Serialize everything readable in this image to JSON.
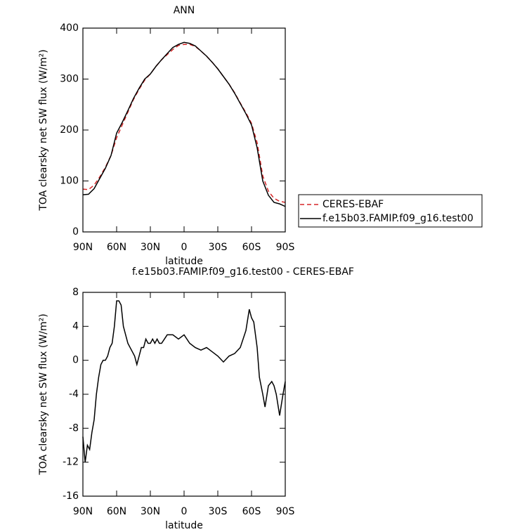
{
  "chart_data": [
    {
      "type": "line",
      "title": "ANN",
      "xlabel": "latitude",
      "ylabel": "TOA clearsky net SW flux (W/m²)",
      "x": [
        90,
        85,
        80,
        75,
        70,
        65,
        60,
        55,
        50,
        45,
        40,
        35,
        30,
        25,
        20,
        15,
        10,
        5,
        0,
        -5,
        -10,
        -15,
        -20,
        -25,
        -30,
        -35,
        -40,
        -45,
        -50,
        -55,
        -60,
        -65,
        -70,
        -75,
        -80,
        -85,
        -90
      ],
      "xlim": [
        90,
        -90
      ],
      "xticks": [
        {
          "value": 90,
          "label": "90N"
        },
        {
          "value": 60,
          "label": "60N"
        },
        {
          "value": 30,
          "label": "30N"
        },
        0,
        {
          "value": -30,
          "label": "30S"
        },
        {
          "value": -60,
          "label": "60S"
        },
        {
          "value": -90,
          "label": "90S"
        }
      ],
      "ylim": [
        0,
        400
      ],
      "yticks": [
        0,
        100,
        200,
        300,
        400
      ],
      "legend": "right",
      "series": [
        {
          "name": "CERES-EBAF",
          "color": "#d62728",
          "dash": "dashed",
          "values": [
            84,
            83,
            92,
            108,
            127,
            150,
            185,
            210,
            235,
            260,
            280,
            298,
            310,
            325,
            338,
            348,
            358,
            366,
            368,
            368,
            364,
            355,
            345,
            333,
            320,
            305,
            290,
            273,
            253,
            234,
            213,
            175,
            110,
            80,
            66,
            60,
            58
          ]
        },
        {
          "name": "f.e15b03.FAMIP.f09_g16.test00",
          "color": "#000000",
          "dash": "solid",
          "values": [
            73,
            74,
            85,
            105,
            125,
            150,
            194,
            215,
            238,
            262,
            282,
            300,
            310,
            325,
            338,
            350,
            362,
            368,
            372,
            370,
            365,
            355,
            345,
            333,
            320,
            305,
            290,
            272,
            252,
            232,
            210,
            165,
            100,
            72,
            58,
            55,
            50
          ]
        }
      ]
    },
    {
      "type": "line",
      "title": "f.e15b03.FAMIP.f09_g16.test00 - CERES-EBAF",
      "xlabel": "latitude",
      "ylabel": "TOA clearsky net SW flux (W/m²)",
      "x": [
        90,
        88,
        86,
        84,
        82,
        80,
        78,
        76,
        74,
        72,
        70,
        68,
        66,
        64,
        62,
        60,
        58,
        56,
        54,
        52,
        50,
        48,
        46,
        44,
        42,
        40,
        38,
        36,
        34,
        32,
        30,
        28,
        26,
        24,
        22,
        20,
        15,
        10,
        5,
        0,
        -5,
        -10,
        -15,
        -20,
        -25,
        -30,
        -35,
        -40,
        -45,
        -50,
        -55,
        -58,
        -60,
        -62,
        -65,
        -67,
        -70,
        -72,
        -75,
        -78,
        -80,
        -82,
        -85,
        -88,
        -90
      ],
      "xlim": [
        90,
        -90
      ],
      "xticks": [
        {
          "value": 90,
          "label": "90N"
        },
        {
          "value": 60,
          "label": "60N"
        },
        {
          "value": 30,
          "label": "30N"
        },
        0,
        {
          "value": -30,
          "label": "30S"
        },
        {
          "value": -60,
          "label": "60S"
        },
        {
          "value": -90,
          "label": "90S"
        }
      ],
      "ylim": [
        -16,
        8
      ],
      "yticks": [
        -16,
        -12,
        -8,
        -4,
        0,
        4,
        8
      ],
      "series": [
        {
          "color": "#000000",
          "dash": "solid",
          "values": [
            -9,
            -12,
            -10,
            -10.5,
            -8.5,
            -7,
            -4,
            -2,
            -0.5,
            0,
            0,
            0.5,
            1.5,
            2,
            4,
            7,
            7,
            6.5,
            4,
            3,
            2,
            1.5,
            1,
            0.5,
            -0.5,
            0.5,
            1.5,
            1.5,
            2.5,
            2,
            2,
            2.5,
            2,
            2.5,
            2,
            2,
            3,
            3,
            2.5,
            3,
            2,
            1.5,
            1.2,
            1.5,
            1,
            0.5,
            -0.2,
            0.5,
            0.8,
            1.5,
            3.5,
            6,
            5,
            4.5,
            1.5,
            -2,
            -4,
            -5.5,
            -3,
            -2.5,
            -3,
            -4,
            -6.5,
            -4,
            -2.5
          ]
        }
      ]
    }
  ]
}
